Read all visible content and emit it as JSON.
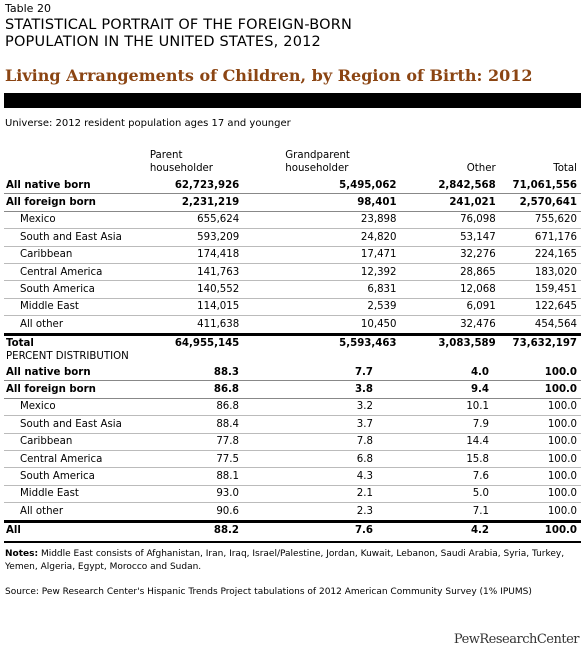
{
  "header": {
    "table_label": "Table 20",
    "title_lines": [
      "STATISTICAL PORTRAIT OF THE FOREIGN-BORN",
      "POPULATION IN THE UNITED STATES, 2012"
    ],
    "subtitle": "Living Arrangements of Children, by Region of Birth: 2012"
  },
  "universe": "Universe: 2012 resident population ages 17 and younger",
  "columns": [
    "Parent householder",
    "Grandparent householder",
    "Other",
    "Total"
  ],
  "counts": {
    "rows": [
      [
        "All native born",
        "62,723,926",
        "5,495,062",
        "2,842,568",
        "71,061,556"
      ],
      [
        "All foreign born",
        "2,231,219",
        "98,401",
        "241,021",
        "2,570,641"
      ],
      [
        "Mexico",
        "655,624",
        "23,898",
        "76,098",
        "755,620"
      ],
      [
        "South and East Asia",
        "593,209",
        "24,820",
        "53,147",
        "671,176"
      ],
      [
        "Caribbean",
        "174,418",
        "17,471",
        "32,276",
        "224,165"
      ],
      [
        "Central America",
        "141,763",
        "12,392",
        "28,865",
        "183,020"
      ],
      [
        "South America",
        "140,552",
        "6,831",
        "12,068",
        "159,451"
      ],
      [
        "Middle East",
        "114,015",
        "2,539",
        "6,091",
        "122,645"
      ],
      [
        "All other",
        "411,638",
        "10,450",
        "32,476",
        "454,564"
      ],
      [
        "Total",
        "64,955,145",
        "5,593,463",
        "3,083,589",
        "73,632,197"
      ]
    ]
  },
  "percent": {
    "heading": "PERCENT DISTRIBUTION",
    "rows": [
      [
        "All native born",
        "88.3",
        "7.7",
        "4.0",
        "100.0"
      ],
      [
        "All foreign born",
        "86.8",
        "3.8",
        "9.4",
        "100.0"
      ],
      [
        "Mexico",
        "86.8",
        "3.2",
        "10.1",
        "100.0"
      ],
      [
        "South and East Asia",
        "88.4",
        "3.7",
        "7.9",
        "100.0"
      ],
      [
        "Caribbean",
        "77.8",
        "7.8",
        "14.4",
        "100.0"
      ],
      [
        "Central America",
        "77.5",
        "6.8",
        "15.8",
        "100.0"
      ],
      [
        "South America",
        "88.1",
        "4.3",
        "7.6",
        "100.0"
      ],
      [
        "Middle East",
        "93.0",
        "2.1",
        "5.0",
        "100.0"
      ],
      [
        "All other",
        "90.6",
        "2.3",
        "7.1",
        "100.0"
      ],
      [
        "All",
        "88.2",
        "7.6",
        "4.2",
        "100.0"
      ]
    ]
  },
  "notes": {
    "label": "Notes:",
    "text": "Middle East consists of Afghanistan, Iran, Iraq, Israel/Palestine, Jordan, Kuwait, Lebanon, Saudi Arabia, Syria, Turkey, Yemen, Algeria, Egypt, Morocco and Sudan."
  },
  "source": "Source: Pew Research Center's Hispanic Trends Project tabulations of 2012 American Community Survey (1% IPUMS)",
  "logo": "PewResearchCenter"
}
